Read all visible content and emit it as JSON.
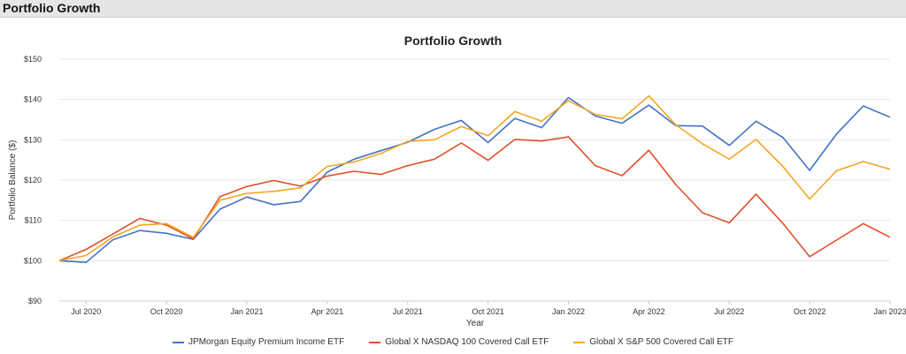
{
  "header": {
    "title": "Portfolio Growth"
  },
  "chart_data": {
    "type": "line",
    "title": "Portfolio Growth",
    "xlabel": "Year",
    "ylabel": "Portfolio Balance ($)",
    "ylim": [
      90,
      150
    ],
    "yticks": [
      90,
      100,
      110,
      120,
      130,
      140,
      150
    ],
    "ytick_labels": [
      "$90",
      "$100",
      "$110",
      "$120",
      "$130",
      "$140",
      "$150"
    ],
    "xtick_labels": [
      "Jul 2020",
      "Oct 2020",
      "Jan 2021",
      "Apr 2021",
      "Jul 2021",
      "Oct 2021",
      "Jan 2022",
      "Apr 2022",
      "Jul 2022",
      "Oct 2022",
      "Jan 2023"
    ],
    "xtick_index": [
      1,
      4,
      7,
      10,
      13,
      16,
      19,
      22,
      25,
      28,
      31
    ],
    "x": [
      "Jun 2020",
      "Jul 2020",
      "Aug 2020",
      "Sep 2020",
      "Oct 2020",
      "Nov 2020",
      "Dec 2020",
      "Jan 2021",
      "Feb 2021",
      "Mar 2021",
      "Apr 2021",
      "May 2021",
      "Jun 2021",
      "Jul 2021",
      "Aug 2021",
      "Sep 2021",
      "Oct 2021",
      "Nov 2021",
      "Dec 2021",
      "Jan 2022",
      "Feb 2022",
      "Mar 2022",
      "Apr 2022",
      "May 2022",
      "Jun 2022",
      "Jul 2022",
      "Aug 2022",
      "Sep 2022",
      "Oct 2022",
      "Nov 2022",
      "Dec 2022",
      "Jan 2023"
    ],
    "grid": true,
    "legend": "bottom",
    "series": [
      {
        "name": "JPMorgan Equity Premium Income ETF",
        "color": "#4472c4",
        "values": [
          100,
          99.6,
          105.2,
          107.5,
          106.8,
          105.3,
          112.8,
          115.8,
          113.9,
          114.7,
          122.0,
          125.2,
          127.3,
          129.4,
          132.6,
          134.8,
          129.3,
          135.3,
          133.0,
          140.5,
          135.9,
          134.1,
          138.6,
          133.5,
          133.4,
          128.6,
          134.6,
          130.6,
          122.4,
          131.4,
          138.4,
          135.6
        ]
      },
      {
        "name": "Global X NASDAQ 100 Covered Call ETF",
        "color": "#e0502a",
        "values": [
          100,
          102.8,
          106.6,
          110.5,
          108.8,
          105.4,
          115.9,
          118.4,
          119.9,
          118.5,
          121.0,
          122.2,
          121.4,
          123.6,
          125.2,
          129.2,
          124.9,
          130.1,
          129.7,
          130.7,
          123.6,
          121.1,
          127.4,
          118.9,
          111.9,
          109.4,
          116.5,
          109.3,
          101.0,
          105.1,
          109.2,
          105.8
        ]
      },
      {
        "name": "Global X S&P 500 Covered Call ETF",
        "color": "#f5a623",
        "values": [
          100,
          101.3,
          105.9,
          108.8,
          109.2,
          105.8,
          115.0,
          116.7,
          117.2,
          118.1,
          123.4,
          124.5,
          126.6,
          129.6,
          130.0,
          133.3,
          131.0,
          137.0,
          134.6,
          139.7,
          136.3,
          135.2,
          140.9,
          133.7,
          129.0,
          125.2,
          130.1,
          123.4,
          115.3,
          122.3,
          124.6,
          122.7
        ]
      }
    ]
  }
}
